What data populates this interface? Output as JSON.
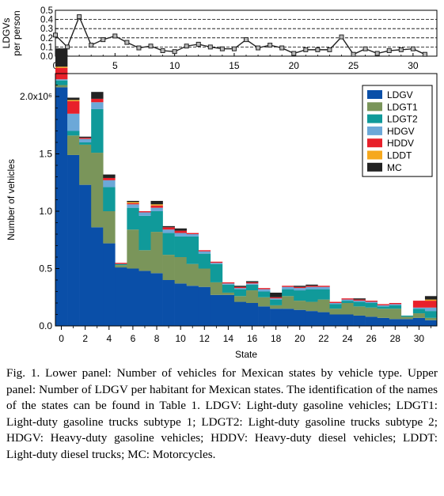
{
  "chart_data": [
    {
      "type": "line",
      "ylabel": "LDGVs\nper person",
      "xlim": [
        0,
        32
      ],
      "ylim": [
        0,
        0.5
      ],
      "yticks": [
        0.0,
        0.1,
        0.2,
        0.3,
        0.4,
        0.5
      ],
      "ytick_labels": [
        "0.0",
        "0.1",
        "0.2",
        "0.3",
        "0.4",
        "0.5"
      ],
      "xticks": [
        0,
        5,
        10,
        15,
        20,
        25,
        30
      ],
      "xtick_labels": [
        "0",
        "5",
        "10",
        "15",
        "20",
        "25",
        "30"
      ],
      "grid": "horizontal-dashed",
      "x": [
        0,
        1,
        2,
        3,
        4,
        5,
        6,
        7,
        8,
        9,
        10,
        11,
        12,
        13,
        14,
        15,
        16,
        17,
        18,
        19,
        20,
        21,
        22,
        23,
        24,
        25,
        26,
        27,
        28,
        29,
        30,
        31
      ],
      "y": [
        0.23,
        0.1,
        0.43,
        0.12,
        0.18,
        0.22,
        0.15,
        0.09,
        0.11,
        0.06,
        0.05,
        0.11,
        0.13,
        0.1,
        0.08,
        0.08,
        0.18,
        0.09,
        0.12,
        0.09,
        0.03,
        0.07,
        0.07,
        0.07,
        0.21,
        0.02,
        0.08,
        0.03,
        0.06,
        0.07,
        0.08,
        0.02
      ]
    },
    {
      "type": "bar",
      "stacked": true,
      "xlabel": "State",
      "ylabel": "Number of vehicles",
      "xlim": [
        0,
        31
      ],
      "ylim": [
        0,
        2.2
      ],
      "yticks": [
        0.0,
        0.5,
        1.0,
        1.5,
        2.0
      ],
      "ytick_labels": [
        "0.0",
        "0.5",
        "1.0",
        "1.5",
        "2.0x10⁶"
      ],
      "xticks": [
        0,
        2,
        4,
        6,
        8,
        10,
        12,
        14,
        16,
        18,
        20,
        22,
        24,
        26,
        28,
        30
      ],
      "xtick_labels": [
        "0",
        "2",
        "4",
        "6",
        "8",
        "10",
        "12",
        "14",
        "16",
        "18",
        "20",
        "22",
        "24",
        "26",
        "28",
        "30"
      ],
      "legend_position": "top-right",
      "categories": [
        0,
        1,
        2,
        3,
        4,
        5,
        6,
        7,
        8,
        9,
        10,
        11,
        12,
        13,
        14,
        15,
        16,
        17,
        18,
        19,
        20,
        21,
        22,
        23,
        24,
        25,
        26,
        27,
        28,
        29,
        30,
        31
      ],
      "series": [
        {
          "name": "LDGV",
          "color": "#0a4fa8",
          "values": [
            2.08,
            1.49,
            1.23,
            0.86,
            0.72,
            0.51,
            0.5,
            0.48,
            0.46,
            0.4,
            0.37,
            0.35,
            0.34,
            0.27,
            0.27,
            0.21,
            0.2,
            0.17,
            0.15,
            0.15,
            0.14,
            0.13,
            0.12,
            0.1,
            0.1,
            0.09,
            0.08,
            0.07,
            0.06,
            0.06,
            0.07,
            0.05
          ]
        },
        {
          "name": "LDGT1",
          "color": "#7a955a",
          "values": [
            0.02,
            0.17,
            0.35,
            0.65,
            0.28,
            0.02,
            0.34,
            0.18,
            0.36,
            0.22,
            0.23,
            0.19,
            0.16,
            0.11,
            0.02,
            0.05,
            0.11,
            0.08,
            0.03,
            0.11,
            0.08,
            0.08,
            0.11,
            0.05,
            0.1,
            0.08,
            0.08,
            0.08,
            0.09,
            0.02,
            0.04,
            0.02
          ]
        },
        {
          "name": "LDGT2",
          "color": "#109a9a",
          "values": [
            0.04,
            0.04,
            0.02,
            0.38,
            0.21,
            0.01,
            0.19,
            0.3,
            0.18,
            0.19,
            0.18,
            0.24,
            0.13,
            0.16,
            0.07,
            0.06,
            0.05,
            0.05,
            0.05,
            0.06,
            0.09,
            0.11,
            0.09,
            0.04,
            0.02,
            0.04,
            0.04,
            0.02,
            0.03,
            0.01,
            0.04,
            0.06
          ]
        },
        {
          "name": "HDGV",
          "color": "#6ca8d8",
          "values": [
            0.01,
            0.15,
            0.03,
            0.06,
            0.06,
            0.0,
            0.03,
            0.03,
            0.03,
            0.03,
            0.03,
            0.02,
            0.02,
            0.01,
            0.01,
            0.01,
            0.01,
            0.02,
            0.01,
            0.02,
            0.02,
            0.02,
            0.02,
            0.01,
            0.01,
            0.01,
            0.01,
            0.01,
            0.01,
            0.0,
            0.01,
            0.03
          ]
        },
        {
          "name": "HDDV",
          "color": "#e8202a",
          "values": [
            0.1,
            0.11,
            0.01,
            0.03,
            0.02,
            0.01,
            0.01,
            0.01,
            0.02,
            0.02,
            0.02,
            0.01,
            0.01,
            0.01,
            0.01,
            0.01,
            0.01,
            0.01,
            0.01,
            0.01,
            0.01,
            0.01,
            0.01,
            0.01,
            0.01,
            0.01,
            0.01,
            0.01,
            0.01,
            0.0,
            0.06,
            0.06
          ]
        },
        {
          "name": "LDDT",
          "color": "#f6a81c",
          "values": [
            0.01,
            0.01,
            0.0,
            0.0,
            0.0,
            0.0,
            0.01,
            0.0,
            0.01,
            0.0,
            0.0,
            0.0,
            0.0,
            0.0,
            0.0,
            0.0,
            0.0,
            0.0,
            0.0,
            0.0,
            0.0,
            0.0,
            0.0,
            0.0,
            0.0,
            0.0,
            0.0,
            0.0,
            0.0,
            0.0,
            0.0,
            0.01
          ]
        },
        {
          "name": "MC",
          "color": "#222222",
          "values": [
            0.16,
            0.02,
            0.01,
            0.06,
            0.03,
            0.0,
            0.01,
            0.0,
            0.03,
            0.01,
            0.02,
            0.0,
            0.0,
            0.0,
            0.0,
            0.01,
            0.01,
            0.0,
            0.04,
            0.0,
            0.01,
            0.01,
            0.0,
            0.0,
            0.0,
            0.01,
            0.0,
            0.0,
            0.0,
            0.0,
            0.0,
            0.03
          ]
        }
      ]
    }
  ],
  "caption": "Fig. 1. Lower panel: Number of vehicles for Mexican states by vehicle type. Upper panel: Number of LDGV per habitant for Mexican states. The identification of the names of the states can be found in Table 1. LDGV: Light-duty gasoline vehicles; LDGT1: Light-duty gasoline trucks subtype 1; LDGT2: Light-duty gasoline trucks subtype 2; HDGV: Heavy-duty gasoline vehicles; HDDV: Heavy-duty diesel vehicles; LDDT: Light-duty diesel trucks; MC: Motorcycles."
}
